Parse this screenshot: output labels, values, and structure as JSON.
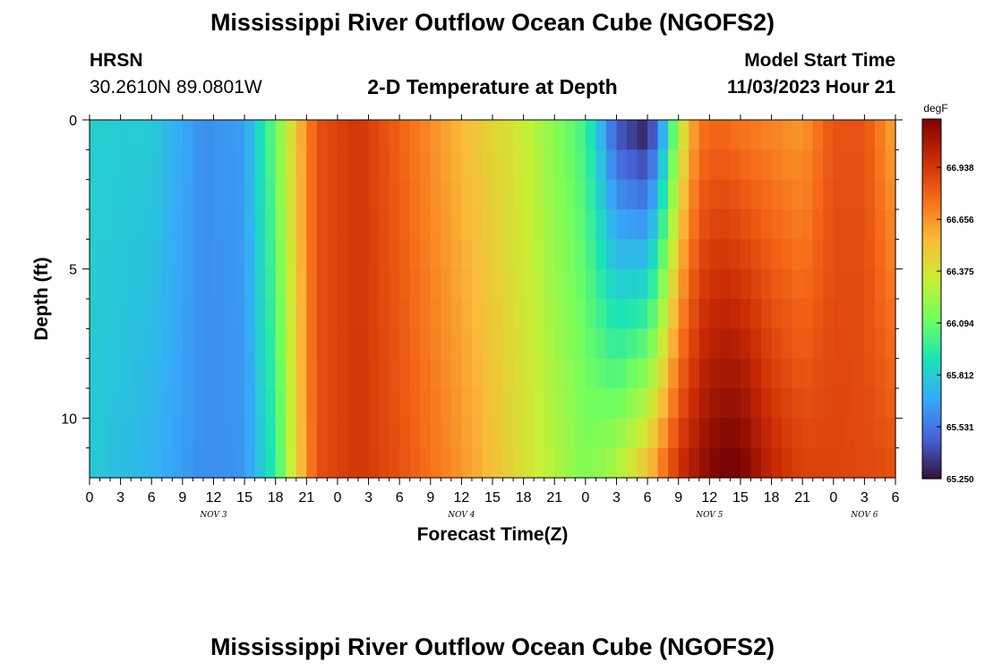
{
  "header": {
    "title": "Mississippi River Outflow Ocean Cube (NGOFS2)",
    "station_name": "HRSN",
    "station_coords": "30.2610N  89.0801W",
    "plot_title": "2-D Temperature at Depth",
    "model_start_label": "Model Start Time",
    "model_start_value": "11/03/2023 Hour 21"
  },
  "footer": {
    "title": "Mississippi River Outflow Ocean Cube (NGOFS2)"
  },
  "chart_data": {
    "type": "heatmap",
    "title": "2-D Temperature at Depth",
    "xlabel": "Forecast Time(Z)",
    "ylabel": "Depth (ft)",
    "x_range_hours": [
      0,
      78
    ],
    "xlim": [
      0,
      78
    ],
    "ylim": [
      12,
      0
    ],
    "x_tick_labels": [
      "0",
      "3",
      "6",
      "9",
      "12",
      "15",
      "18",
      "21",
      "0",
      "3",
      "6",
      "9",
      "12",
      "15",
      "18",
      "21",
      "0",
      "3",
      "6",
      "9",
      "12",
      "15",
      "18",
      "21",
      "0",
      "3",
      "6"
    ],
    "date_labels": [
      {
        "label": "NOV 3",
        "hour": 12
      },
      {
        "label": "NOV 4",
        "hour": 36
      },
      {
        "label": "NOV 5",
        "hour": 60
      },
      {
        "label": "NOV 6",
        "hour": 75
      }
    ],
    "y_ticks": [
      0,
      5,
      10
    ],
    "colorbar": {
      "unit": "degF",
      "min": 65.25,
      "max": 67.2,
      "tick_labels": [
        "66.938",
        "66.656",
        "66.375",
        "66.094",
        "65.812",
        "65.531",
        "65.250"
      ],
      "tick_values": [
        66.938,
        66.656,
        66.375,
        66.094,
        65.812,
        65.531,
        65.25
      ],
      "colors": [
        "#30123b",
        "#4662d7",
        "#36aaf9",
        "#1ae4b6",
        "#72fe5e",
        "#c8ef34",
        "#faba39",
        "#f66b19",
        "#ca2a04",
        "#7a0403"
      ]
    },
    "depths_ft": [
      0.5,
      1.5,
      2.5,
      3.5,
      4.5,
      5.5,
      6.5,
      7.5,
      8.5,
      9.5,
      10.5,
      11.5
    ],
    "series": [
      {
        "hour": 0,
        "surface": 65.82,
        "bottom": 65.8
      },
      {
        "hour": 6,
        "surface": 65.8,
        "bottom": 65.72
      },
      {
        "hour": 11,
        "surface": 65.6,
        "bottom": 65.6
      },
      {
        "hour": 15,
        "surface": 65.65,
        "bottom": 65.62
      },
      {
        "hour": 18,
        "surface": 66.1,
        "bottom": 65.95
      },
      {
        "hour": 20,
        "surface": 66.5,
        "bottom": 66.45
      },
      {
        "hour": 22,
        "surface": 66.85,
        "bottom": 66.85
      },
      {
        "hour": 26,
        "surface": 66.95,
        "bottom": 66.95
      },
      {
        "hour": 30,
        "surface": 66.8,
        "bottom": 66.85
      },
      {
        "hour": 36,
        "surface": 66.55,
        "bottom": 66.65
      },
      {
        "hour": 42,
        "surface": 66.35,
        "bottom": 66.4
      },
      {
        "hour": 48,
        "surface": 66.0,
        "bottom": 66.15
      },
      {
        "hour": 51,
        "surface": 65.45,
        "bottom": 66.25
      },
      {
        "hour": 54,
        "surface": 65.3,
        "bottom": 66.5
      },
      {
        "hour": 56,
        "surface": 65.85,
        "bottom": 66.8
      },
      {
        "hour": 57,
        "surface": 66.3,
        "bottom": 66.95
      },
      {
        "hour": 59,
        "surface": 66.75,
        "bottom": 67.1
      },
      {
        "hour": 61,
        "surface": 66.8,
        "bottom": 67.2
      },
      {
        "hour": 63,
        "surface": 66.75,
        "bottom": 67.2
      },
      {
        "hour": 66,
        "surface": 66.7,
        "bottom": 67.0
      },
      {
        "hour": 69,
        "surface": 66.65,
        "bottom": 66.9
      },
      {
        "hour": 72,
        "surface": 66.85,
        "bottom": 66.9
      },
      {
        "hour": 75,
        "surface": 66.85,
        "bottom": 66.88
      },
      {
        "hour": 78,
        "surface": 66.6,
        "bottom": 66.85
      }
    ]
  }
}
